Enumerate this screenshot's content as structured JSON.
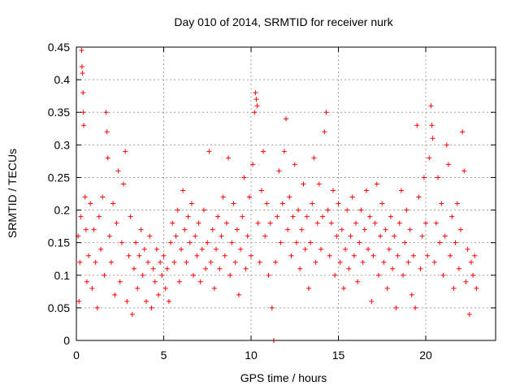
{
  "chart_data": {
    "type": "scatter",
    "title": "Day 010 of 2014, SRMTID for receiver nurk",
    "xlabel": "GPS time / hours",
    "ylabel": "SRMTID / TECUs",
    "xlim": [
      0,
      24
    ],
    "ylim": [
      0,
      0.45
    ],
    "x_ticks": [
      0,
      5,
      10,
      15,
      20
    ],
    "x_tick_labels": [
      "0",
      "5",
      "10",
      "15",
      "20"
    ],
    "y_ticks": [
      0,
      0.05,
      0.1,
      0.15,
      0.2,
      0.25,
      0.3,
      0.35,
      0.4,
      0.45
    ],
    "y_tick_labels": [
      "0",
      "0.05",
      "0.1",
      "0.15",
      "0.2",
      "0.25",
      "0.3",
      "0.35",
      "0.4",
      "0.45"
    ],
    "grid": true,
    "marker": "plus",
    "color": "#ff0000",
    "series": [
      {
        "name": "SRMTID",
        "points": [
          [
            0.1,
            0.16
          ],
          [
            0.15,
            0.06
          ],
          [
            0.2,
            0.12
          ],
          [
            0.25,
            0.19
          ],
          [
            0.3,
            0.445
          ],
          [
            0.32,
            0.42
          ],
          [
            0.35,
            0.41
          ],
          [
            0.38,
            0.38
          ],
          [
            0.4,
            0.35
          ],
          [
            0.42,
            0.33
          ],
          [
            0.5,
            0.22
          ],
          [
            0.55,
            0.17
          ],
          [
            0.6,
            0.09
          ],
          [
            0.7,
            0.13
          ],
          [
            0.8,
            0.21
          ],
          [
            0.9,
            0.08
          ],
          [
            1.0,
            0.17
          ],
          [
            1.1,
            0.12
          ],
          [
            1.2,
            0.05
          ],
          [
            1.3,
            0.19
          ],
          [
            1.4,
            0.14
          ],
          [
            1.5,
            0.22
          ],
          [
            1.6,
            0.1
          ],
          [
            1.7,
            0.35
          ],
          [
            1.75,
            0.32
          ],
          [
            1.8,
            0.28
          ],
          [
            1.9,
            0.16
          ],
          [
            2.0,
            0.12
          ],
          [
            2.1,
            0.21
          ],
          [
            2.2,
            0.07
          ],
          [
            2.3,
            0.18
          ],
          [
            2.4,
            0.26
          ],
          [
            2.5,
            0.09
          ],
          [
            2.6,
            0.15
          ],
          [
            2.7,
            0.24
          ],
          [
            2.8,
            0.29
          ],
          [
            2.9,
            0.06
          ],
          [
            3.0,
            0.13
          ],
          [
            3.1,
            0.19
          ],
          [
            3.2,
            0.04
          ],
          [
            3.3,
            0.11
          ],
          [
            3.4,
            0.15
          ],
          [
            3.5,
            0.08
          ],
          [
            3.6,
            0.13
          ],
          [
            3.7,
            0.17
          ],
          [
            3.8,
            0.1
          ],
          [
            3.9,
            0.14
          ],
          [
            4.0,
            0.06
          ],
          [
            4.1,
            0.12
          ],
          [
            4.2,
            0.16
          ],
          [
            4.3,
            0.05
          ],
          [
            4.4,
            0.11
          ],
          [
            4.5,
            0.09
          ],
          [
            4.6,
            0.14
          ],
          [
            4.7,
            0.07
          ],
          [
            4.8,
            0.12
          ],
          [
            4.9,
            0.1
          ],
          [
            5.0,
            0.13
          ],
          [
            5.1,
            0.08
          ],
          [
            5.2,
            0.11
          ],
          [
            5.3,
            0.06
          ],
          [
            5.4,
            0.15
          ],
          [
            5.5,
            0.18
          ],
          [
            5.6,
            0.12
          ],
          [
            5.7,
            0.16
          ],
          [
            5.8,
            0.2
          ],
          [
            5.9,
            0.09
          ],
          [
            6.0,
            0.14
          ],
          [
            6.1,
            0.23
          ],
          [
            6.2,
            0.17
          ],
          [
            6.3,
            0.12
          ],
          [
            6.4,
            0.19
          ],
          [
            6.5,
            0.15
          ],
          [
            6.6,
            0.21
          ],
          [
            6.7,
            0.1
          ],
          [
            6.8,
            0.16
          ],
          [
            6.9,
            0.13
          ],
          [
            7.0,
            0.18
          ],
          [
            7.1,
            0.09
          ],
          [
            7.2,
            0.14
          ],
          [
            7.3,
            0.2
          ],
          [
            7.4,
            0.11
          ],
          [
            7.5,
            0.15
          ],
          [
            7.6,
            0.29
          ],
          [
            7.7,
            0.12
          ],
          [
            7.8,
            0.17
          ],
          [
            7.9,
            0.08
          ],
          [
            8.0,
            0.14
          ],
          [
            8.1,
            0.19
          ],
          [
            8.2,
            0.11
          ],
          [
            8.3,
            0.16
          ],
          [
            8.4,
            0.22
          ],
          [
            8.5,
            0.13
          ],
          [
            8.6,
            0.18
          ],
          [
            8.7,
            0.28
          ],
          [
            8.8,
            0.1
          ],
          [
            8.9,
            0.15
          ],
          [
            9.0,
            0.21
          ],
          [
            9.1,
            0.12
          ],
          [
            9.2,
            0.17
          ],
          [
            9.3,
            0.07
          ],
          [
            9.4,
            0.14
          ],
          [
            9.5,
            0.19
          ],
          [
            9.6,
            0.25
          ],
          [
            9.7,
            0.11
          ],
          [
            9.8,
            0.16
          ],
          [
            9.9,
            0.22
          ],
          [
            10.0,
            0.13
          ],
          [
            10.1,
            0.27
          ],
          [
            10.2,
            0.35
          ],
          [
            10.25,
            0.38
          ],
          [
            10.3,
            0.37
          ],
          [
            10.35,
            0.36
          ],
          [
            10.4,
            0.18
          ],
          [
            10.5,
            0.12
          ],
          [
            10.6,
            0.23
          ],
          [
            10.7,
            0.29
          ],
          [
            10.8,
            0.16
          ],
          [
            10.9,
            0.21
          ],
          [
            11.0,
            0.1
          ],
          [
            11.1,
            0.18
          ],
          [
            11.2,
            0.05
          ],
          [
            11.3,
            0.0
          ],
          [
            11.4,
            0.12
          ],
          [
            11.5,
            0.19
          ],
          [
            11.6,
            0.26
          ],
          [
            11.7,
            0.15
          ],
          [
            11.8,
            0.21
          ],
          [
            11.9,
            0.29
          ],
          [
            12.0,
            0.34
          ],
          [
            12.1,
            0.17
          ],
          [
            12.2,
            0.22
          ],
          [
            12.3,
            0.13
          ],
          [
            12.4,
            0.19
          ],
          [
            12.5,
            0.27
          ],
          [
            12.6,
            0.15
          ],
          [
            12.7,
            0.2
          ],
          [
            12.8,
            0.11
          ],
          [
            12.9,
            0.17
          ],
          [
            13.0,
            0.24
          ],
          [
            13.1,
            0.14
          ],
          [
            13.2,
            0.19
          ],
          [
            13.3,
            0.08
          ],
          [
            13.4,
            0.15
          ],
          [
            13.5,
            0.21
          ],
          [
            13.6,
            0.28
          ],
          [
            13.7,
            0.12
          ],
          [
            13.8,
            0.18
          ],
          [
            13.9,
            0.24
          ],
          [
            14.0,
            0.14
          ],
          [
            14.1,
            0.19
          ],
          [
            14.2,
            0.32
          ],
          [
            14.3,
            0.35
          ],
          [
            14.4,
            0.2
          ],
          [
            14.5,
            0.13
          ],
          [
            14.6,
            0.18
          ],
          [
            14.7,
            0.23
          ],
          [
            14.8,
            0.1
          ],
          [
            14.9,
            0.16
          ],
          [
            15.0,
            0.21
          ],
          [
            15.1,
            0.12
          ],
          [
            15.2,
            0.17
          ],
          [
            15.3,
            0.08
          ],
          [
            15.4,
            0.14
          ],
          [
            15.5,
            0.2
          ],
          [
            15.6,
            0.11
          ],
          [
            15.7,
            0.16
          ],
          [
            15.8,
            0.22
          ],
          [
            15.9,
            0.13
          ],
          [
            16.0,
            0.18
          ],
          [
            16.1,
            0.09
          ],
          [
            16.2,
            0.15
          ],
          [
            16.3,
            0.2
          ],
          [
            16.4,
            0.12
          ],
          [
            16.5,
            0.17
          ],
          [
            16.6,
            0.23
          ],
          [
            16.7,
            0.14
          ],
          [
            16.8,
            0.19
          ],
          [
            16.9,
            0.06
          ],
          [
            17.0,
            0.13
          ],
          [
            17.1,
            0.18
          ],
          [
            17.2,
            0.24
          ],
          [
            17.3,
            0.1
          ],
          [
            17.4,
            0.16
          ],
          [
            17.5,
            0.21
          ],
          [
            17.6,
            0.12
          ],
          [
            17.7,
            0.17
          ],
          [
            17.8,
            0.08
          ],
          [
            17.9,
            0.14
          ],
          [
            18.0,
            0.19
          ],
          [
            18.1,
            0.11
          ],
          [
            18.2,
            0.16
          ],
          [
            18.3,
            0.05
          ],
          [
            18.4,
            0.13
          ],
          [
            18.5,
            0.18
          ],
          [
            18.6,
            0.23
          ],
          [
            18.7,
            0.1
          ],
          [
            18.8,
            0.15
          ],
          [
            18.9,
            0.2
          ],
          [
            19.0,
            0.12
          ],
          [
            19.1,
            0.17
          ],
          [
            19.2,
            0.07
          ],
          [
            19.3,
            0.13
          ],
          [
            19.4,
            0.05
          ],
          [
            19.5,
            0.33
          ],
          [
            19.6,
            0.22
          ],
          [
            19.7,
            0.11
          ],
          [
            19.8,
            0.16
          ],
          [
            19.9,
            0.25
          ],
          [
            20.0,
            0.18
          ],
          [
            20.1,
            0.13
          ],
          [
            20.2,
            0.28
          ],
          [
            20.3,
            0.36
          ],
          [
            20.35,
            0.33
          ],
          [
            20.4,
            0.31
          ],
          [
            20.5,
            0.12
          ],
          [
            20.6,
            0.18
          ],
          [
            20.7,
            0.25
          ],
          [
            20.8,
            0.15
          ],
          [
            20.9,
            0.21
          ],
          [
            21.0,
            0.1
          ],
          [
            21.1,
            0.16
          ],
          [
            21.2,
            0.3
          ],
          [
            21.3,
            0.27
          ],
          [
            21.4,
            0.13
          ],
          [
            21.5,
            0.19
          ],
          [
            21.6,
            0.08
          ],
          [
            21.7,
            0.15
          ],
          [
            21.8,
            0.21
          ],
          [
            21.9,
            0.11
          ],
          [
            22.0,
            0.17
          ],
          [
            22.1,
            0.32
          ],
          [
            22.2,
            0.26
          ],
          [
            22.3,
            0.09
          ],
          [
            22.4,
            0.14
          ],
          [
            22.5,
            0.04
          ],
          [
            22.6,
            0.12
          ],
          [
            22.7,
            0.1
          ],
          [
            22.8,
            0.13
          ],
          [
            22.9,
            0.08
          ]
        ]
      }
    ]
  }
}
